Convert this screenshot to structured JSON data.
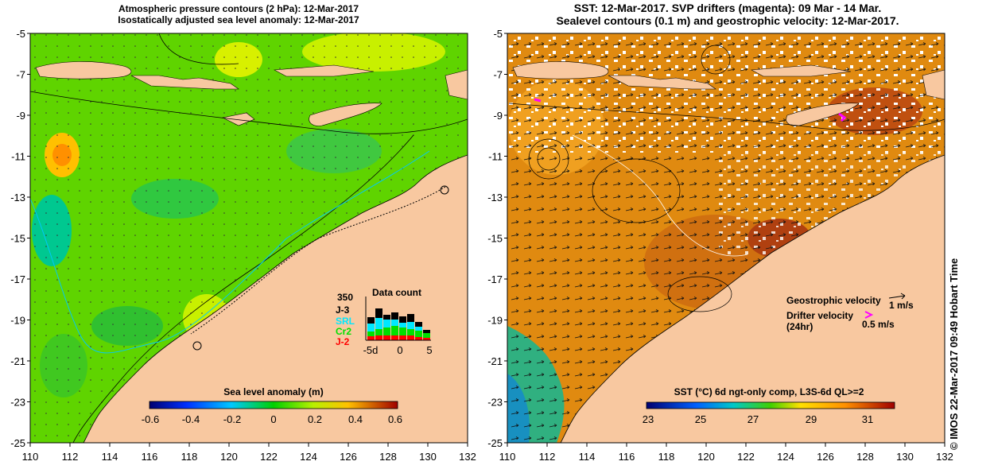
{
  "left_panel": {
    "title_line1": "Atmospheric pressure contours (2 hPa): 12-Mar-2017",
    "title_line2": "Isostatically adjusted sea level anomaly: 12-Mar-2017",
    "colorbar": {
      "label": "Sea level anomaly (m)",
      "ticks": [
        "-0.6",
        "-0.4",
        "-0.2",
        "0",
        "0.2",
        "0.4",
        "0.6"
      ]
    },
    "data_count": {
      "title": "Data count",
      "max_label": "350",
      "missions": [
        {
          "name": "J-3",
          "color": "#000000"
        },
        {
          "name": "SRL",
          "color": "#00e8ff"
        },
        {
          "name": "Cr2",
          "color": "#00e000"
        },
        {
          "name": "J-2",
          "color": "#ff0000"
        }
      ],
      "x_ticks": [
        "-5d",
        "0",
        "5"
      ]
    }
  },
  "right_panel": {
    "title_line1": "SST: 12-Mar-2017. SVP drifters (magenta): 09 Mar - 14 Mar.",
    "title_line2": "Sealevel contours (0.1 m) and geostrophic velocity: 12-Mar-2017.",
    "colorbar": {
      "label": "SST (°C) 6d ngt-only comp, L3S-6d QL>=2",
      "ticks": [
        "23",
        "25",
        "27",
        "29",
        "31"
      ]
    },
    "legend": {
      "geostrophic_label": "Geostrophic velocity",
      "geostrophic_scale": "1 m/s",
      "drifter_label_line1": "Drifter velocity",
      "drifter_label_line2": "(24hr)",
      "drifter_scale": "0.5 m/s"
    }
  },
  "axes": {
    "x_ticks": [
      "110",
      "112",
      "114",
      "116",
      "118",
      "120",
      "122",
      "124",
      "126",
      "128",
      "130",
      "132"
    ],
    "y_ticks": [
      "-5",
      "-7",
      "-9",
      "-11",
      "-13",
      "-15",
      "-17",
      "-19",
      "-21",
      "-23",
      "-25"
    ]
  },
  "credit": "© IMOS 22-Mar-2017 09:49 Hobart Time",
  "colors": {
    "land": "#f8c8a0",
    "sla_green": "#5fd400",
    "sst_orange": "#e08a10",
    "drifter": "#ff00ff"
  }
}
